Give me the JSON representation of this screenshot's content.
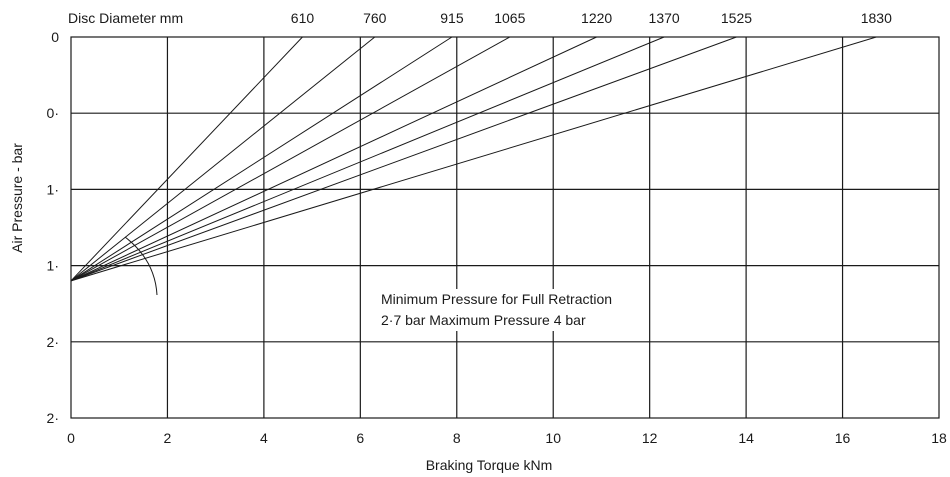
{
  "chart_data": {
    "type": "line",
    "xlabel": "Braking Torque kNm",
    "ylabel": "Air Pressure - bar",
    "top_axis_label": "Disc Diameter mm",
    "xlim": [
      0,
      18
    ],
    "x_ticks": [
      "0",
      "2",
      "4",
      "6",
      "8",
      "10",
      "12",
      "14",
      "16",
      "18"
    ],
    "y_tick_labels": [
      "0",
      "0·",
      "1·",
      "1·",
      "2·",
      "2·"
    ],
    "ylim": [
      0,
      2.5
    ],
    "grid": true,
    "origin_point": {
      "x": 0,
      "y": 1.6
    },
    "series": [
      {
        "name": "610",
        "x": [
          0,
          4.8
        ],
        "y": [
          1.6,
          0
        ]
      },
      {
        "name": "760",
        "x": [
          0,
          6.3
        ],
        "y": [
          1.6,
          0
        ]
      },
      {
        "name": "915",
        "x": [
          0,
          7.9
        ],
        "y": [
          1.6,
          0
        ]
      },
      {
        "name": "1065",
        "x": [
          0,
          9.1
        ],
        "y": [
          1.6,
          0
        ]
      },
      {
        "name": "1220",
        "x": [
          0,
          10.9
        ],
        "y": [
          1.6,
          0
        ]
      },
      {
        "name": "1370",
        "x": [
          0,
          12.3
        ],
        "y": [
          1.6,
          0
        ]
      },
      {
        "name": "1525",
        "x": [
          0,
          13.8
        ],
        "y": [
          1.6,
          0
        ]
      },
      {
        "name": "1830",
        "x": [
          0,
          16.7
        ],
        "y": [
          1.6,
          0
        ]
      }
    ],
    "annotation": [
      "Minimum Pressure for Full Retraction",
      "2·7 bar Maximum Pressure 4 bar"
    ]
  }
}
